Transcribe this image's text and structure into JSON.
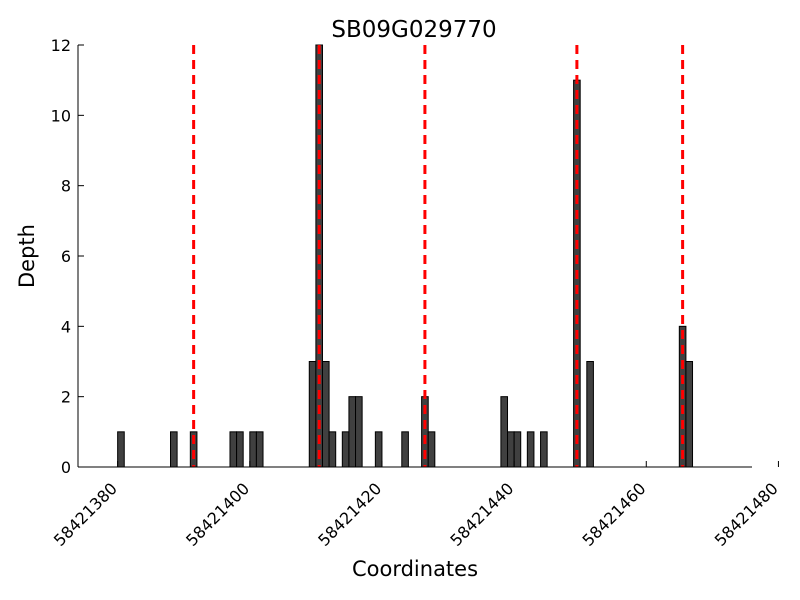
{
  "chart_data": {
    "type": "bar",
    "title": "SB09G029770",
    "xlabel": "Coordinates",
    "ylabel": "Depth",
    "xlim": [
      58421374,
      58421476
    ],
    "ylim": [
      0,
      12
    ],
    "xticks": [
      58421380,
      58421400,
      58421420,
      58421440,
      58421460,
      58421480
    ],
    "yticks": [
      0,
      2,
      4,
      6,
      8,
      10,
      12
    ],
    "bar_color": "#404040",
    "bar_edge_color": "#000000",
    "bar_width": 1,
    "grid": false,
    "bars": [
      {
        "x": 58421380,
        "y": 1
      },
      {
        "x": 58421388,
        "y": 1
      },
      {
        "x": 58421391,
        "y": 1
      },
      {
        "x": 58421397,
        "y": 1
      },
      {
        "x": 58421398,
        "y": 1
      },
      {
        "x": 58421400,
        "y": 1
      },
      {
        "x": 58421401,
        "y": 1
      },
      {
        "x": 58421409,
        "y": 3
      },
      {
        "x": 58421410,
        "y": 12
      },
      {
        "x": 58421411,
        "y": 3
      },
      {
        "x": 58421412,
        "y": 1
      },
      {
        "x": 58421414,
        "y": 1
      },
      {
        "x": 58421415,
        "y": 2
      },
      {
        "x": 58421416,
        "y": 2
      },
      {
        "x": 58421419,
        "y": 1
      },
      {
        "x": 58421423,
        "y": 1
      },
      {
        "x": 58421426,
        "y": 2
      },
      {
        "x": 58421427,
        "y": 1
      },
      {
        "x": 58421438,
        "y": 2
      },
      {
        "x": 58421439,
        "y": 1
      },
      {
        "x": 58421440,
        "y": 1
      },
      {
        "x": 58421442,
        "y": 1
      },
      {
        "x": 58421444,
        "y": 1
      },
      {
        "x": 58421449,
        "y": 11
      },
      {
        "x": 58421451,
        "y": 3
      },
      {
        "x": 58421465,
        "y": 4
      },
      {
        "x": 58421466,
        "y": 3
      }
    ],
    "vlines": {
      "color": "#ff0000",
      "style": "dashed",
      "x": [
        58421391.5,
        58421410.5,
        58421426.5,
        58421449.5,
        58421465.5
      ]
    }
  }
}
